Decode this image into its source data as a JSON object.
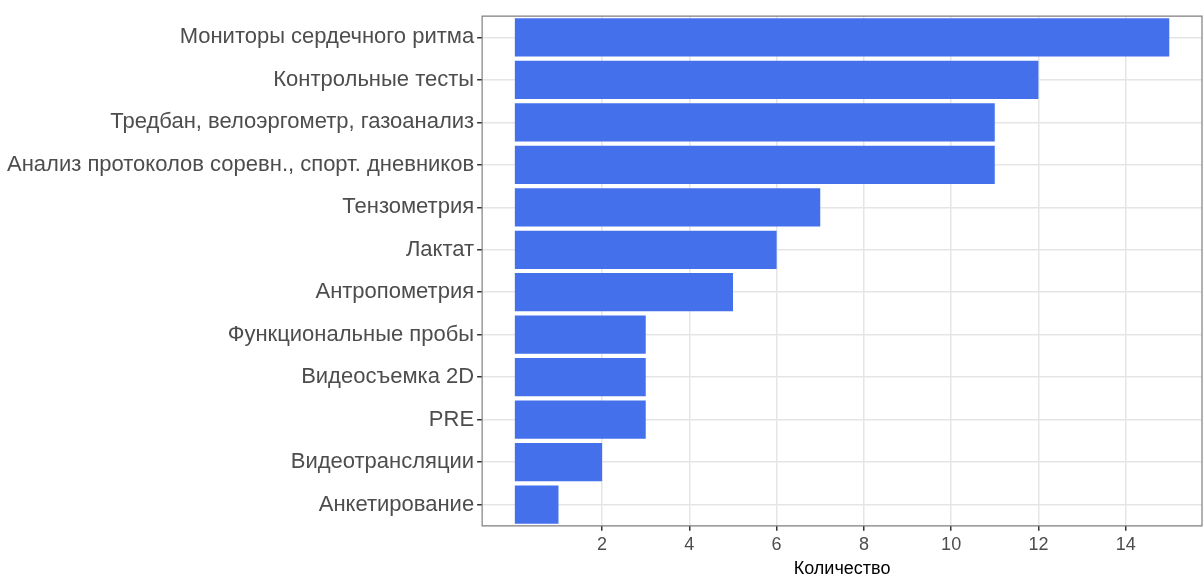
{
  "chart_data": {
    "type": "bar",
    "orientation": "horizontal",
    "xlabel": "Количество",
    "categories": [
      "Мониторы сердечного ритма",
      "Контрольные тесты",
      "Тредбан, велоэргометр, газоанализ",
      "Анализ протоколов соревн., спорт. дневников",
      "Тензометрия",
      "Лактат",
      "Антропометрия",
      "Функциональные пробы",
      "Видеосъемка 2D",
      "PRE",
      "Видеотрансляции",
      "Анкетирование"
    ],
    "values": [
      15,
      12,
      11,
      11,
      7,
      6,
      5,
      3,
      3,
      3,
      2,
      1
    ],
    "color": "#4470ec",
    "xlim": [
      -0.75,
      15.75
    ],
    "xticks": [
      2,
      4,
      6,
      8,
      10,
      12,
      14
    ],
    "grid": true,
    "legend": false
  }
}
